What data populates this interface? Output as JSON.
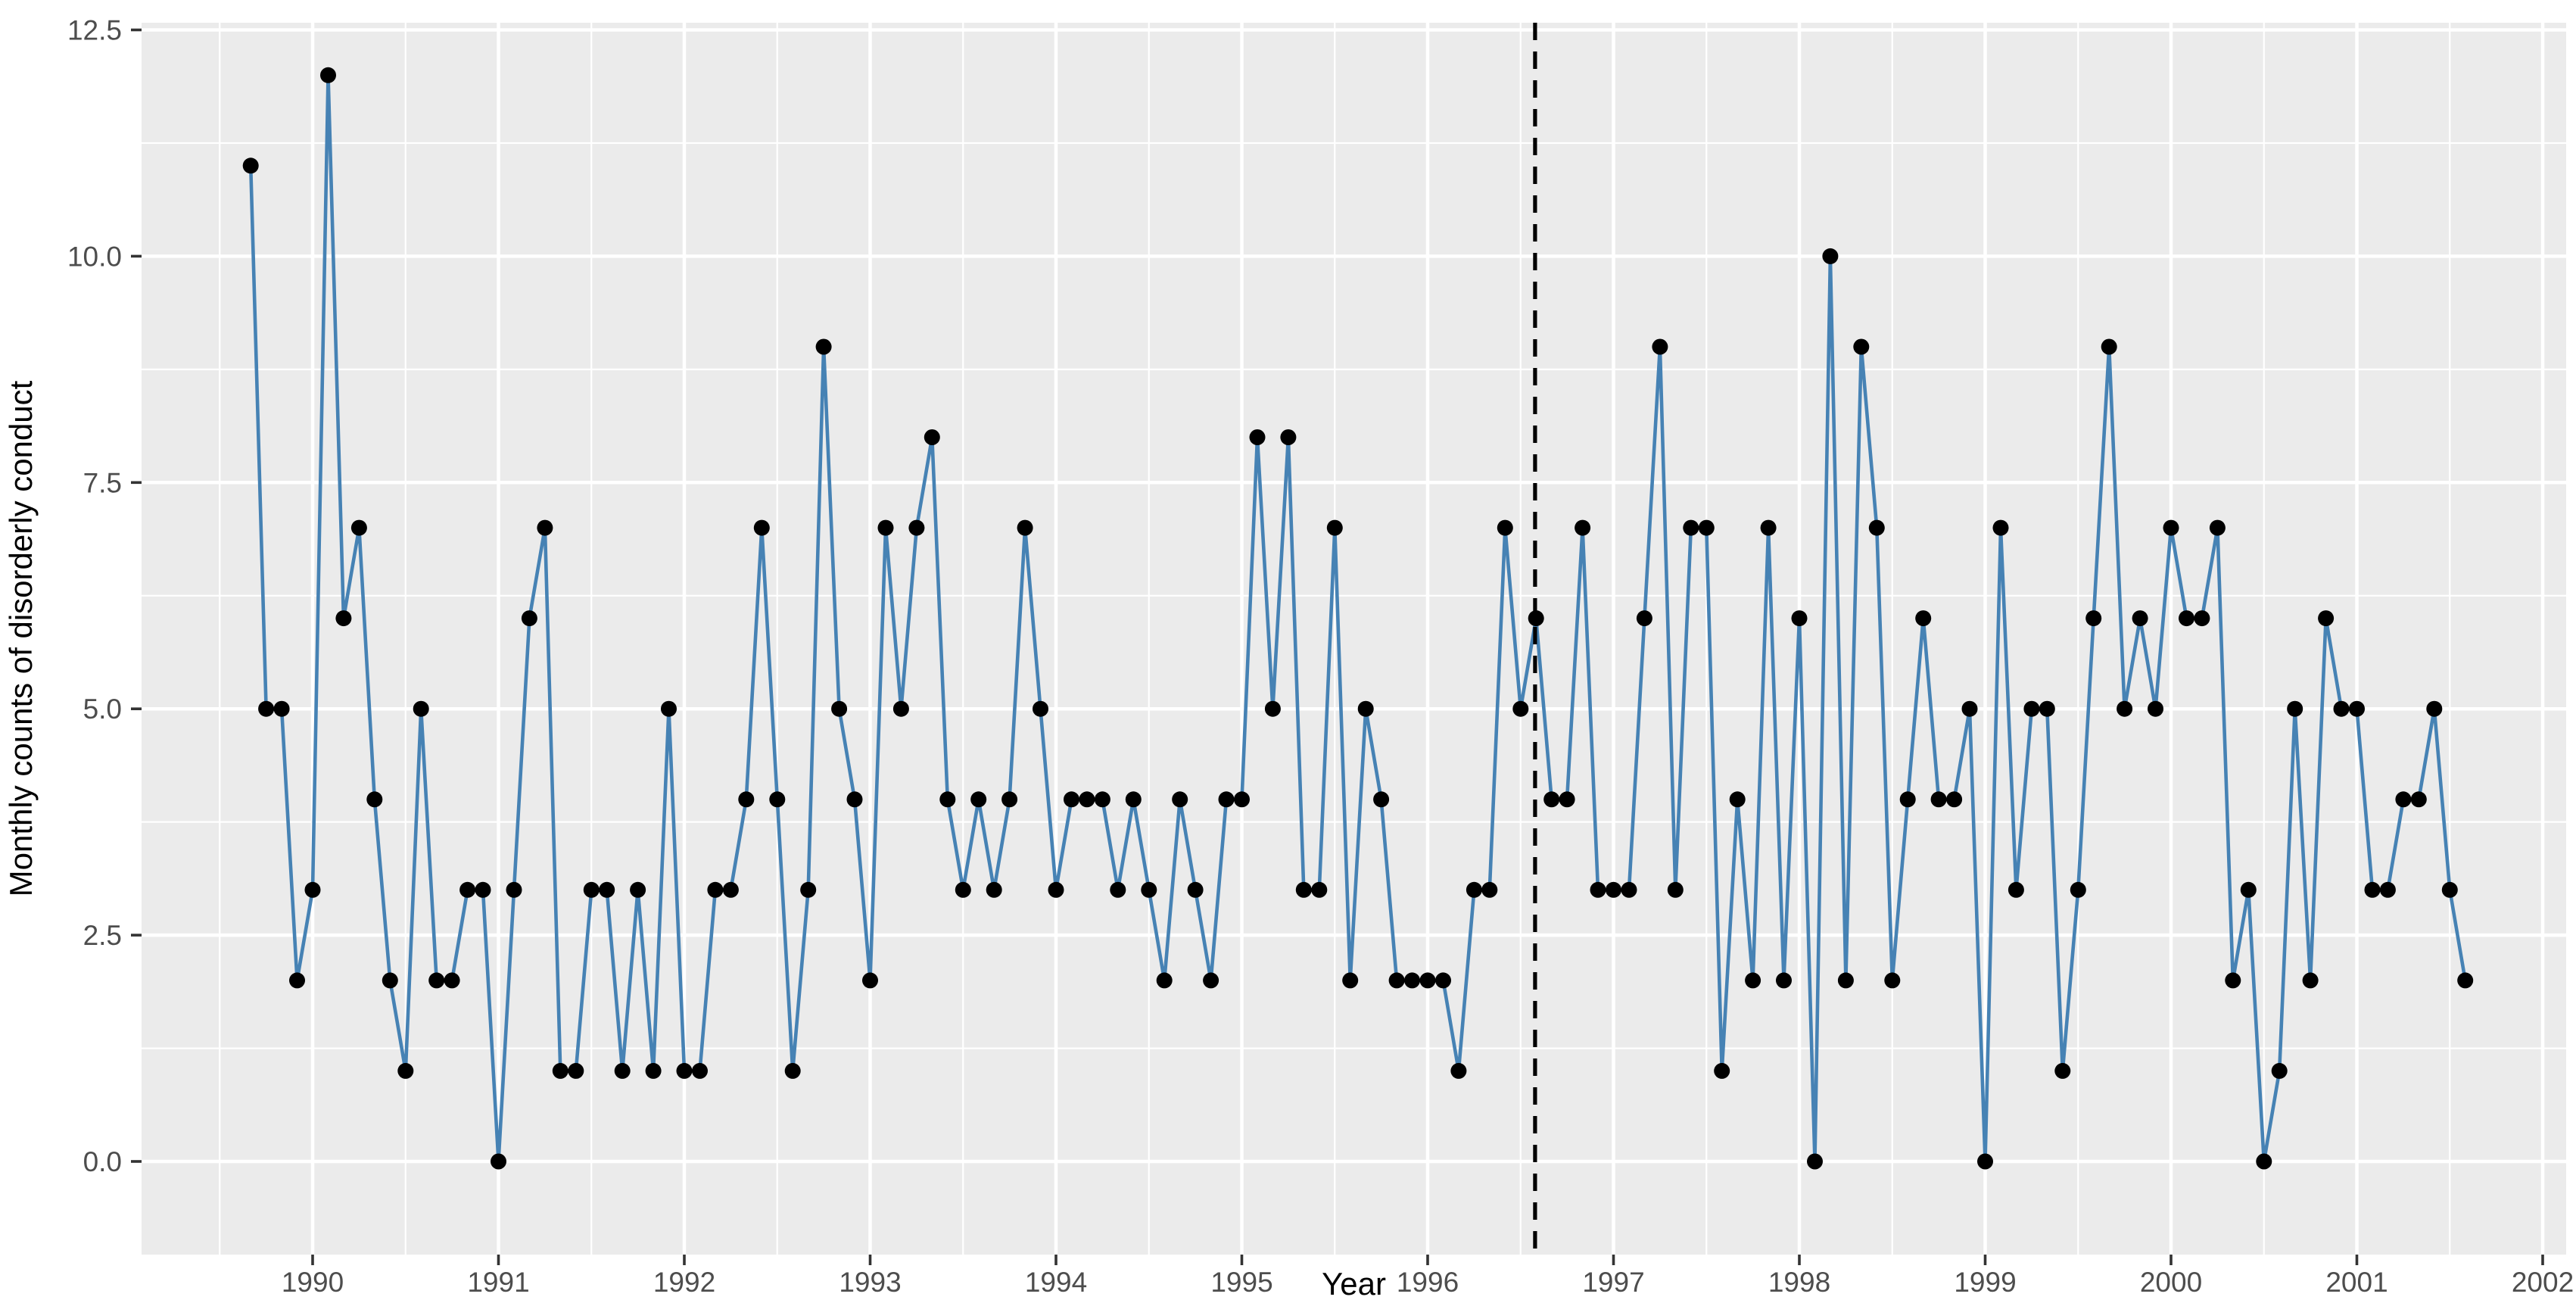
{
  "chart_data": {
    "type": "line",
    "title": "",
    "xlabel": "Year",
    "ylabel": "Monthly counts of  disorderly conduct",
    "legend": "none",
    "grid": "on",
    "panel_background": "#EBEBEB",
    "gridline_color": "#FFFFFF",
    "line_color": "#4682B4",
    "point_color": "#000000",
    "dashed_line_color": "#000000",
    "tick_text_color": "#4D4D4D",
    "axis_label_color": "#000000",
    "xlim": [
      1989.08,
      2002.13
    ],
    "ylim": [
      -0.63,
      12.63
    ],
    "x_tick_labels": [
      "1990",
      "1991",
      "1992",
      "1993",
      "1994",
      "1995",
      "1996",
      "1997",
      "1998",
      "1999",
      "2000",
      "2001",
      "2002"
    ],
    "x_tick_values": [
      1990,
      1991,
      1992,
      1993,
      1994,
      1995,
      1996,
      1997,
      1998,
      1999,
      2000,
      2001,
      2002
    ],
    "y_tick_labels": [
      "0.0",
      "2.5",
      "5.0",
      "7.5",
      "10.0",
      "12.5"
    ],
    "y_tick_values": [
      0,
      2.5,
      5,
      7.5,
      10,
      12.5
    ],
    "y_minor_values": [
      1.25,
      3.75,
      6.25,
      8.75,
      11.25
    ],
    "x_minor_step": 0.5,
    "dashed_line_x": 1996.578,
    "series_start": {
      "year": 1989,
      "month": 9
    },
    "series_name": "monthly-disorderly-conduct-counts",
    "values": [
      11,
      5,
      5,
      2,
      3,
      12,
      6,
      7,
      4,
      2,
      1,
      5,
      2,
      2,
      3,
      3,
      0,
      3,
      6,
      7,
      1,
      1,
      3,
      3,
      1,
      3,
      1,
      5,
      1,
      1,
      3,
      3,
      4,
      7,
      4,
      1,
      3,
      9,
      5,
      4,
      2,
      7,
      5,
      7,
      8,
      4,
      3,
      4,
      3,
      4,
      7,
      5,
      3,
      4,
      4,
      4,
      3,
      4,
      3,
      2,
      4,
      3,
      2,
      4,
      4,
      8,
      5,
      8,
      3,
      3,
      7,
      2,
      5,
      4,
      2,
      2,
      2,
      2,
      1,
      3,
      3,
      7,
      5,
      6,
      4,
      4,
      7,
      3,
      3,
      3,
      6,
      9,
      3,
      7,
      7,
      1,
      4,
      2,
      7,
      2,
      6,
      0,
      10,
      2,
      9,
      7,
      2,
      4,
      6,
      4,
      4,
      5,
      0,
      7,
      3,
      5,
      5,
      1,
      3,
      6,
      9,
      5,
      6,
      5,
      7,
      6,
      6,
      7,
      2,
      3,
      0,
      1,
      5,
      2,
      6,
      5,
      5,
      3,
      3,
      4,
      4,
      5,
      3,
      2
    ]
  }
}
